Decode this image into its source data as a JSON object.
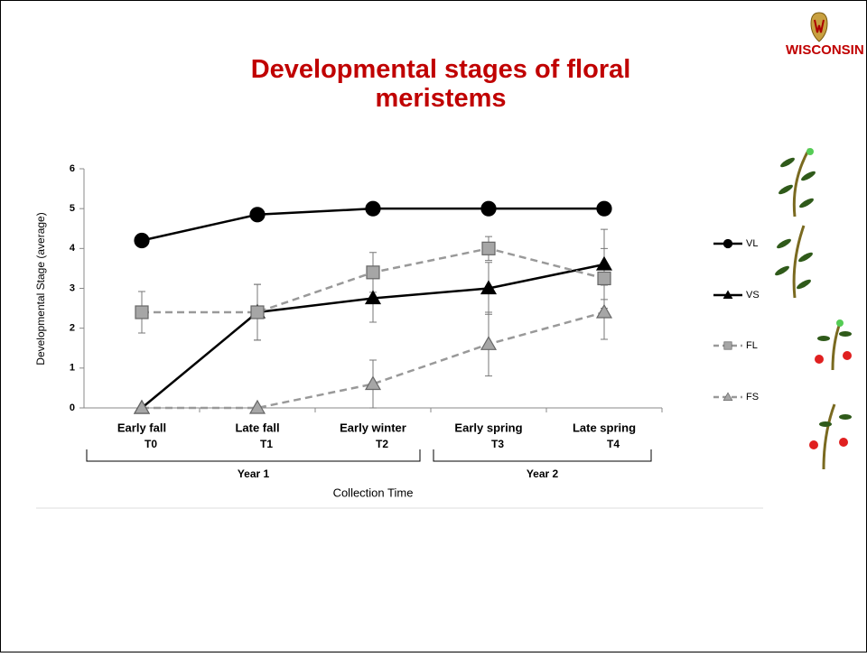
{
  "logo": "WISCONSIN",
  "chart_data": {
    "type": "line",
    "title": "Developmental stages of floral meristems",
    "y_label": "Developmental Stage (average)",
    "x_label": "Collection Time",
    "categories": [
      "Early fall",
      "Late fall",
      "Early winter",
      "Early spring",
      "Late spring"
    ],
    "category_codes": [
      "T0",
      "T1",
      "T2",
      "T3",
      "T4"
    ],
    "groups": [
      {
        "name": "Year 1",
        "from": 0,
        "to": 2
      },
      {
        "name": "Year 2",
        "from": 3,
        "to": 4
      }
    ],
    "ylim": [
      0,
      6
    ],
    "yticks": [
      0,
      1,
      2,
      3,
      4,
      5,
      6
    ],
    "series": [
      {
        "name": "VL",
        "color": "#000000",
        "fill": "#000000",
        "marker": "circle",
        "dashed": false,
        "values": [
          4.2,
          4.85,
          5.0,
          5.0,
          5.0
        ],
        "errors": [
          0.15,
          0.1,
          null,
          null,
          null
        ]
      },
      {
        "name": "VS",
        "color": "#000000",
        "fill": "#000000",
        "marker": "triangle",
        "dashed": false,
        "values": [
          0,
          2.4,
          2.75,
          3.0,
          3.6
        ],
        "errors": [
          null,
          0.7,
          0.6,
          0.65,
          0.88
        ]
      },
      {
        "name": "FL",
        "color": "#999999",
        "fill": "#a6a6a6",
        "marker": "square",
        "dashed": true,
        "values": [
          2.4,
          2.4,
          3.4,
          4.0,
          3.25
        ],
        "errors": [
          0.52,
          0.7,
          0.5,
          0.3,
          0.75
        ]
      },
      {
        "name": "FS",
        "color": "#999999",
        "fill": "#a6a6a6",
        "marker": "triangle",
        "dashed": true,
        "values": [
          0,
          0,
          0.6,
          1.6,
          2.4
        ],
        "errors": [
          null,
          null,
          0.6,
          0.8,
          0.68
        ]
      }
    ]
  }
}
